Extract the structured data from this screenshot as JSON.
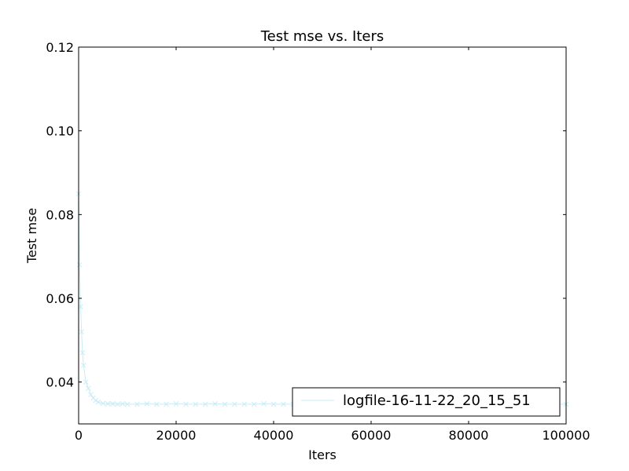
{
  "chart_data": {
    "type": "line",
    "title": "Test mse  vs. Iters",
    "xlabel": "Iters",
    "ylabel": "Test mse",
    "xlim": [
      0,
      100000
    ],
    "ylim": [
      0.03,
      0.12
    ],
    "x_ticks": [
      0,
      20000,
      40000,
      60000,
      80000,
      100000
    ],
    "x_tick_labels": [
      "0",
      "20000",
      "40000",
      "60000",
      "80000",
      "100000"
    ],
    "y_ticks": [
      0.04,
      0.06,
      0.08,
      0.1,
      0.12
    ],
    "y_tick_labels": [
      "0.04",
      "0.06",
      "0.08",
      "0.10",
      "0.12"
    ],
    "grid": false,
    "legend_position": "lower-right",
    "series": [
      {
        "name": "logfile-16-11-22_20_15_51",
        "color": "#c8ecf4",
        "marker": "x",
        "x": [
          0,
          200,
          400,
          600,
          800,
          1000,
          1500,
          2000,
          2500,
          3000,
          3500,
          4000,
          5000,
          6000,
          7000,
          8000,
          9000,
          10000,
          12000,
          14000,
          16000,
          18000,
          20000,
          22000,
          24000,
          26000,
          28000,
          30000,
          32000,
          34000,
          36000,
          38000,
          40000,
          42000,
          44000,
          46000,
          48000,
          50000,
          52000,
          54000,
          56000,
          58000,
          60000,
          62000,
          64000,
          66000,
          68000,
          70000,
          72000,
          74000,
          76000,
          78000,
          80000,
          82000,
          84000,
          86000,
          88000,
          90000,
          92000,
          94000,
          96000,
          98000,
          100000
        ],
        "y": [
          0.085,
          0.068,
          0.058,
          0.052,
          0.047,
          0.044,
          0.04,
          0.0385,
          0.037,
          0.0362,
          0.0356,
          0.0352,
          0.0349,
          0.0348,
          0.0348,
          0.0347,
          0.0348,
          0.0347,
          0.0347,
          0.0348,
          0.0347,
          0.0347,
          0.0348,
          0.0347,
          0.0347,
          0.0347,
          0.0348,
          0.0347,
          0.0347,
          0.0347,
          0.0347,
          0.0348,
          0.0347,
          0.0347,
          0.0347,
          0.0347,
          0.0347,
          0.0347,
          0.0347,
          0.0347,
          0.0347,
          0.0347,
          0.0347,
          0.0347,
          0.0347,
          0.0347,
          0.0347,
          0.0347,
          0.0347,
          0.0347,
          0.0347,
          0.0347,
          0.0347,
          0.0347,
          0.0347,
          0.0347,
          0.0347,
          0.0347,
          0.0347,
          0.0347,
          0.0347,
          0.0347,
          0.0347
        ]
      }
    ]
  }
}
